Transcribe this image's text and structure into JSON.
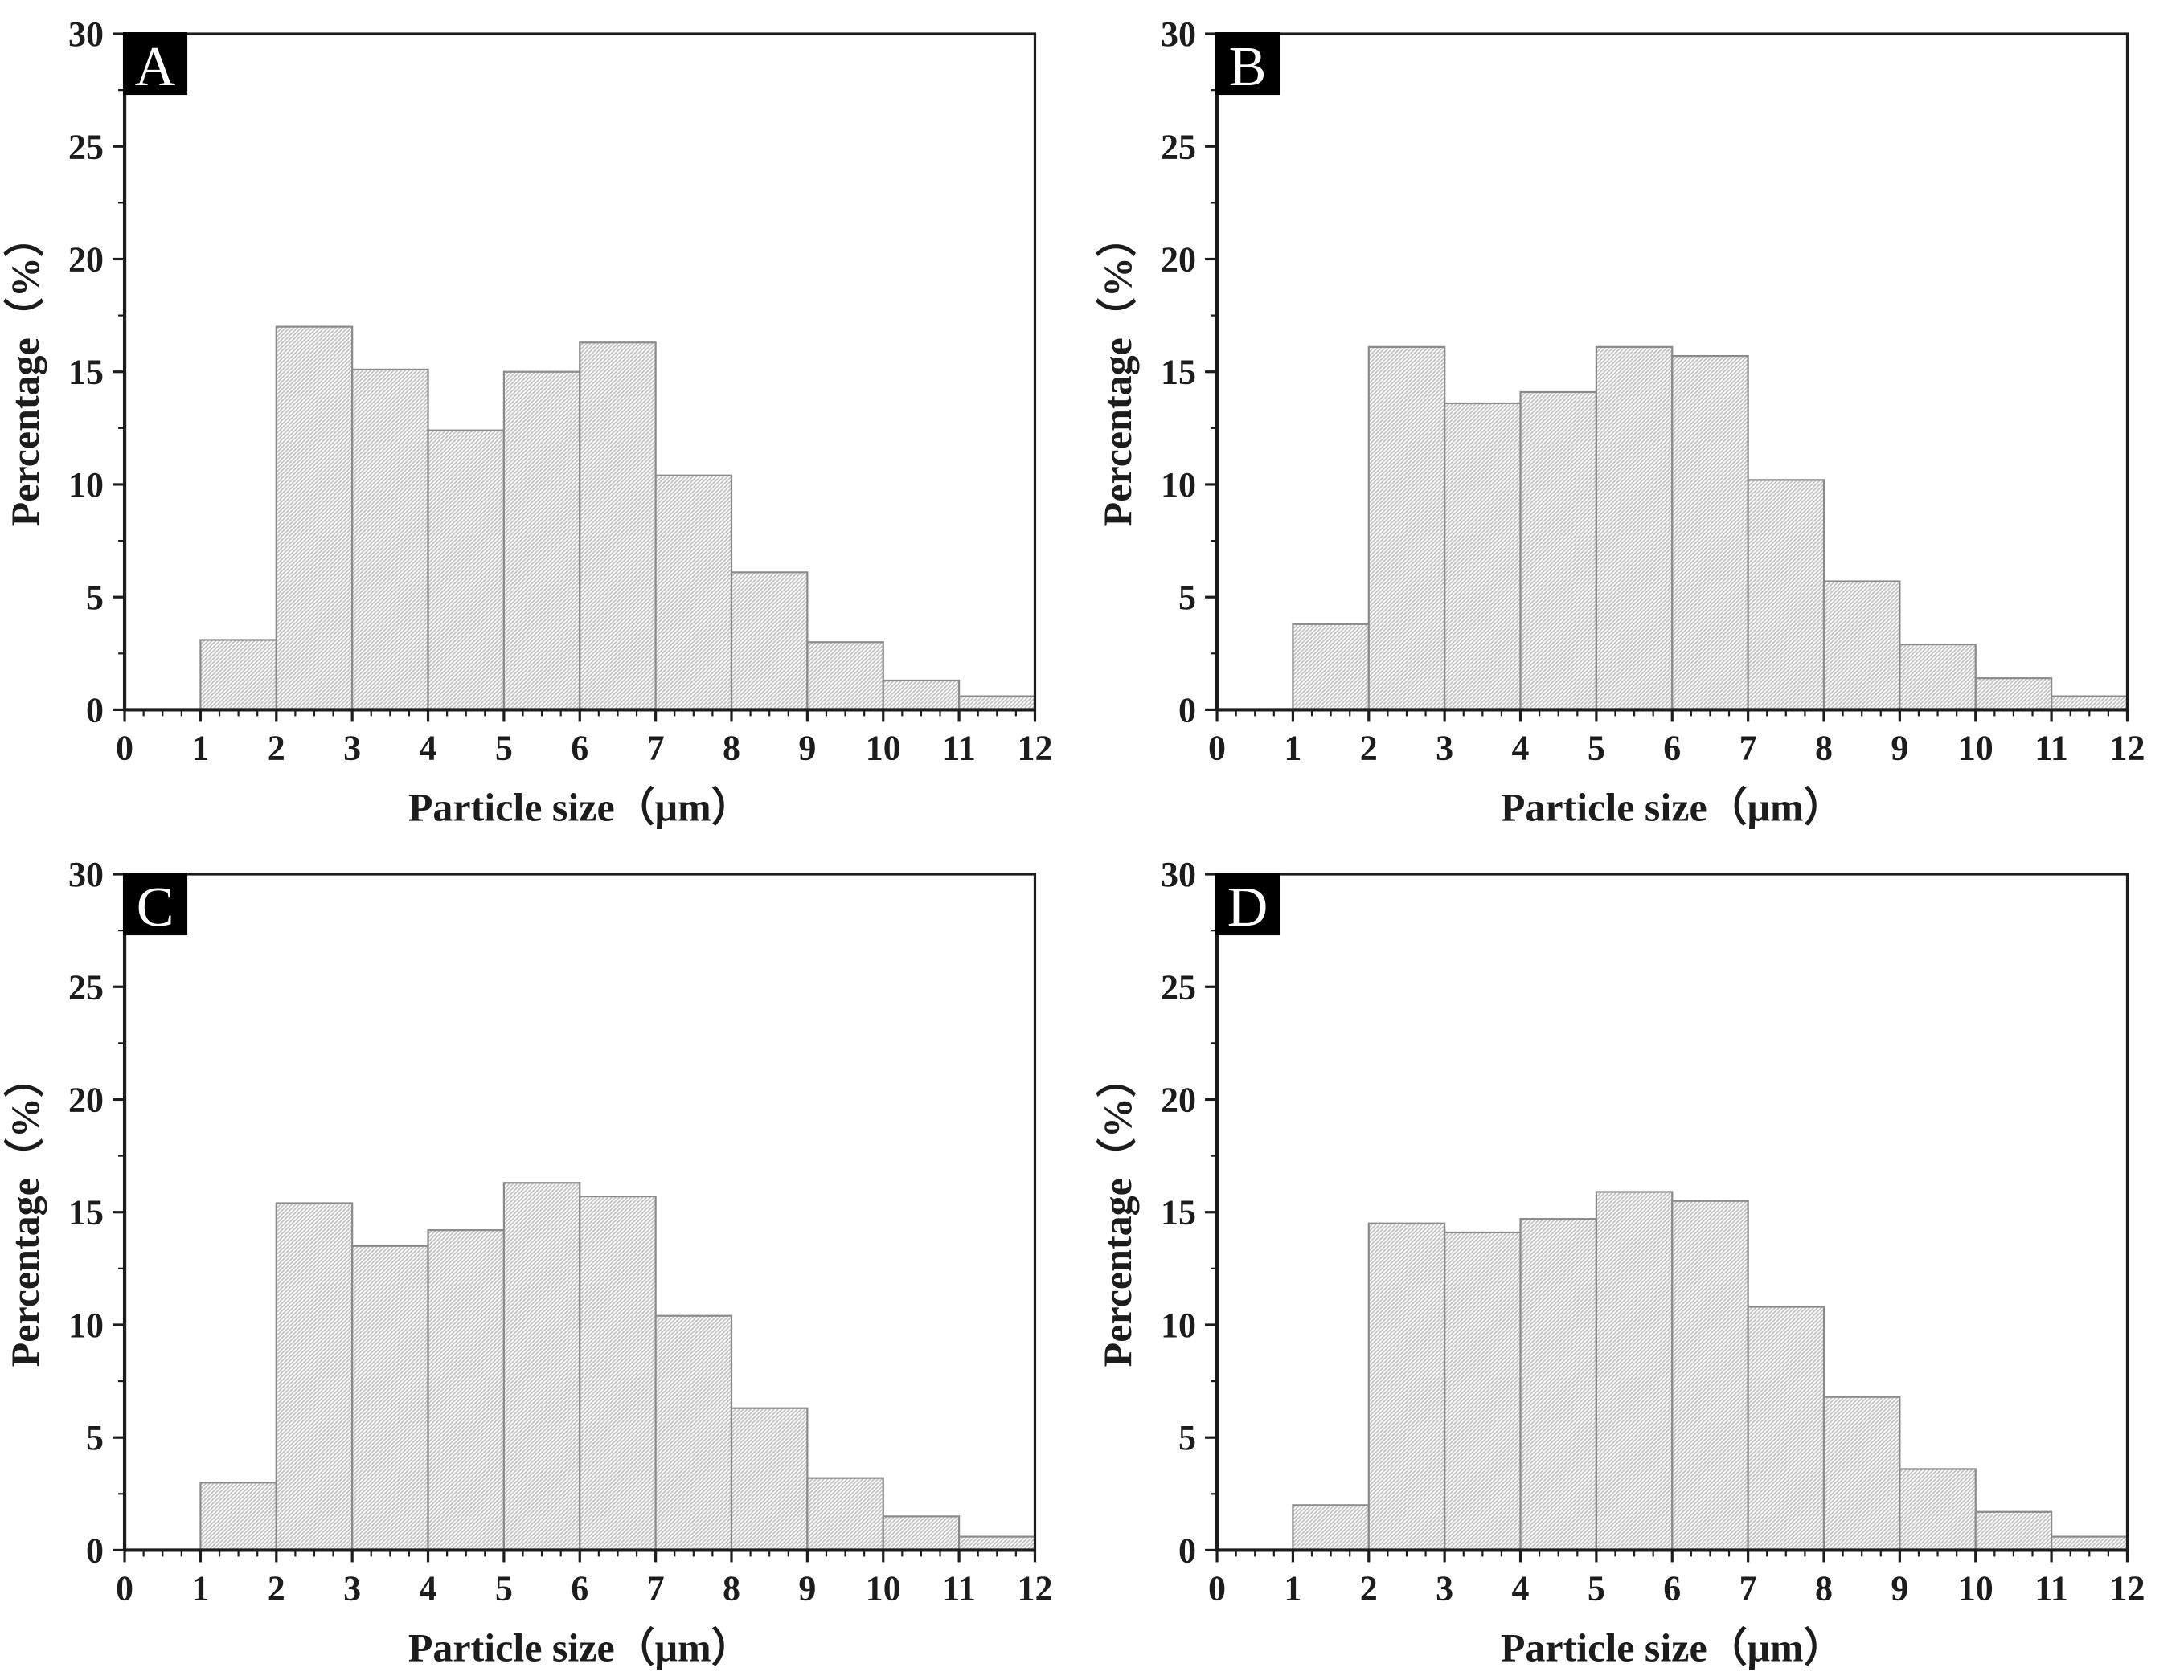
{
  "figure": {
    "background": "#ffffff",
    "description": "Four-panel histogram figure of particle size distributions",
    "panel_order": [
      "A",
      "B",
      "C",
      "D"
    ]
  },
  "chart_data": [
    {
      "type": "bar",
      "panel_label": "A",
      "xlabel": "Particle size（μm）",
      "ylabel": "Percentage（%）",
      "xlim": [
        0,
        12
      ],
      "ylim": [
        0,
        30
      ],
      "x_major_ticks": [
        0,
        1,
        2,
        3,
        4,
        5,
        6,
        7,
        8,
        9,
        10,
        11,
        12
      ],
      "x_tick_labels": [
        "0",
        "1",
        "2",
        "3",
        "4",
        "5",
        "6",
        "7",
        "8",
        "9",
        "10",
        "11",
        "12"
      ],
      "x_minor_step": 0.25,
      "y_major_ticks": [
        0,
        5,
        10,
        15,
        20,
        25,
        30
      ],
      "y_tick_labels": [
        "0",
        "5",
        "10",
        "15",
        "20",
        "25",
        "30"
      ],
      "y_minor_step": 2.5,
      "bin_edges": [
        1,
        2,
        3,
        4,
        5,
        6,
        7,
        8,
        9,
        10,
        11,
        12
      ],
      "categories": [
        "1-2",
        "2-3",
        "3-4",
        "4-5",
        "5-6",
        "6-7",
        "7-8",
        "8-9",
        "9-10",
        "10-11",
        "11-12"
      ],
      "values": [
        3.1,
        17.0,
        15.1,
        12.4,
        15.0,
        16.3,
        10.4,
        6.1,
        3.0,
        1.3,
        0.6
      ]
    },
    {
      "type": "bar",
      "panel_label": "B",
      "xlabel": "Particle size（μm）",
      "ylabel": "Percentage（%）",
      "xlim": [
        0,
        12
      ],
      "ylim": [
        0,
        30
      ],
      "x_major_ticks": [
        0,
        1,
        2,
        3,
        4,
        5,
        6,
        7,
        8,
        9,
        10,
        11,
        12
      ],
      "x_tick_labels": [
        "0",
        "1",
        "2",
        "3",
        "4",
        "5",
        "6",
        "7",
        "8",
        "9",
        "10",
        "11",
        "12"
      ],
      "x_minor_step": 0.25,
      "y_major_ticks": [
        0,
        5,
        10,
        15,
        20,
        25,
        30
      ],
      "y_tick_labels": [
        "0",
        "5",
        "10",
        "15",
        "20",
        "25",
        "30"
      ],
      "y_minor_step": 2.5,
      "bin_edges": [
        1,
        2,
        3,
        4,
        5,
        6,
        7,
        8,
        9,
        10,
        11,
        12
      ],
      "categories": [
        "1-2",
        "2-3",
        "3-4",
        "4-5",
        "5-6",
        "6-7",
        "7-8",
        "8-9",
        "9-10",
        "10-11",
        "11-12"
      ],
      "values": [
        3.8,
        16.1,
        13.6,
        14.1,
        16.1,
        15.7,
        10.2,
        5.7,
        2.9,
        1.4,
        0.6
      ]
    },
    {
      "type": "bar",
      "panel_label": "C",
      "xlabel": "Particle size（μm）",
      "ylabel": "Percentage（%）",
      "xlim": [
        0,
        12
      ],
      "ylim": [
        0,
        30
      ],
      "x_major_ticks": [
        0,
        1,
        2,
        3,
        4,
        5,
        6,
        7,
        8,
        9,
        10,
        11,
        12
      ],
      "x_tick_labels": [
        "0",
        "1",
        "2",
        "3",
        "4",
        "5",
        "6",
        "7",
        "8",
        "9",
        "10",
        "11",
        "12"
      ],
      "x_minor_step": 0.25,
      "y_major_ticks": [
        0,
        5,
        10,
        15,
        20,
        25,
        30
      ],
      "y_tick_labels": [
        "0",
        "5",
        "10",
        "15",
        "20",
        "25",
        "30"
      ],
      "y_minor_step": 2.5,
      "bin_edges": [
        1,
        2,
        3,
        4,
        5,
        6,
        7,
        8,
        9,
        10,
        11,
        12
      ],
      "categories": [
        "1-2",
        "2-3",
        "3-4",
        "4-5",
        "5-6",
        "6-7",
        "7-8",
        "8-9",
        "9-10",
        "10-11",
        "11-12"
      ],
      "values": [
        3.0,
        15.4,
        13.5,
        14.2,
        16.3,
        15.7,
        10.4,
        6.3,
        3.2,
        1.5,
        0.6
      ]
    },
    {
      "type": "bar",
      "panel_label": "D",
      "xlabel": "Particle size（μm）",
      "ylabel": "Percentage（%）",
      "xlim": [
        0,
        12
      ],
      "ylim": [
        0,
        30
      ],
      "x_major_ticks": [
        0,
        1,
        2,
        3,
        4,
        5,
        6,
        7,
        8,
        9,
        10,
        11,
        12
      ],
      "x_tick_labels": [
        "0",
        "1",
        "2",
        "3",
        "4",
        "5",
        "6",
        "7",
        "8",
        "9",
        "10",
        "11",
        "12"
      ],
      "x_minor_step": 0.25,
      "y_major_ticks": [
        0,
        5,
        10,
        15,
        20,
        25,
        30
      ],
      "y_tick_labels": [
        "0",
        "5",
        "10",
        "15",
        "20",
        "25",
        "30"
      ],
      "y_minor_step": 2.5,
      "bin_edges": [
        1,
        2,
        3,
        4,
        5,
        6,
        7,
        8,
        9,
        10,
        11,
        12
      ],
      "categories": [
        "1-2",
        "2-3",
        "3-4",
        "4-5",
        "5-6",
        "6-7",
        "7-8",
        "8-9",
        "9-10",
        "10-11",
        "11-12"
      ],
      "values": [
        2.0,
        14.5,
        14.1,
        14.7,
        15.9,
        15.5,
        10.8,
        6.8,
        3.6,
        1.7,
        0.6
      ]
    }
  ],
  "style": {
    "axis_color": "#1c1c1c",
    "bar_fill": "#fafafa",
    "bar_hatch_color": "#b7b7b7",
    "bar_edge_color": "#8a8a8a",
    "badge_bg": "#000000",
    "badge_fg": "#ffffff",
    "background": "#ffffff"
  }
}
